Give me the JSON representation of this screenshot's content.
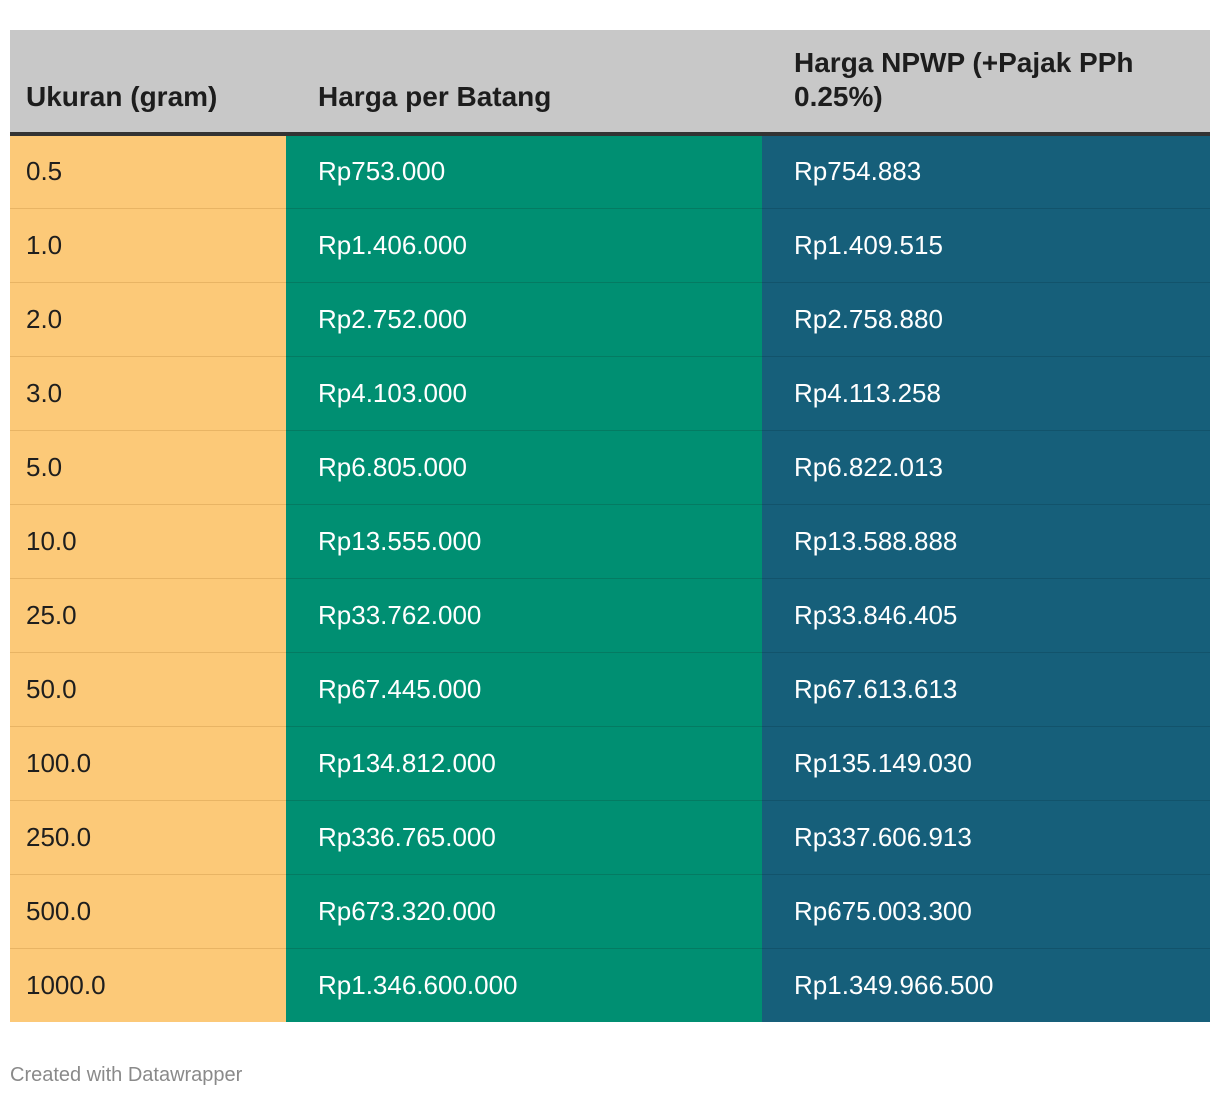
{
  "chart_data": {
    "type": "table",
    "columns": [
      "Ukuran (gram)",
      "Harga per Batang",
      "Harga NPWP (+Pajak PPh 0.25%)"
    ],
    "rows": [
      [
        "0.5",
        "Rp753.000",
        "Rp754.883"
      ],
      [
        "1.0",
        "Rp1.406.000",
        "Rp1.409.515"
      ],
      [
        "2.0",
        "Rp2.752.000",
        "Rp2.758.880"
      ],
      [
        "3.0",
        "Rp4.103.000",
        "Rp4.113.258"
      ],
      [
        "5.0",
        "Rp6.805.000",
        "Rp6.822.013"
      ],
      [
        "10.0",
        "Rp13.555.000",
        "Rp13.588.888"
      ],
      [
        "25.0",
        "Rp33.762.000",
        "Rp33.846.405"
      ],
      [
        "50.0",
        "Rp67.445.000",
        "Rp67.613.613"
      ],
      [
        "100.0",
        "Rp134.812.000",
        "Rp135.149.030"
      ],
      [
        "250.0",
        "Rp336.765.000",
        "Rp337.606.913"
      ],
      [
        "500.0",
        "Rp673.320.000",
        "Rp675.003.300"
      ],
      [
        "1000.0",
        "Rp1.346.600.000",
        "Rp1.349.966.500"
      ]
    ],
    "column_colors": [
      "#fcc978",
      "#008f72",
      "#165f7a"
    ],
    "header_color": "#c8c8c8"
  },
  "footer": {
    "credit": "Created with Datawrapper"
  }
}
